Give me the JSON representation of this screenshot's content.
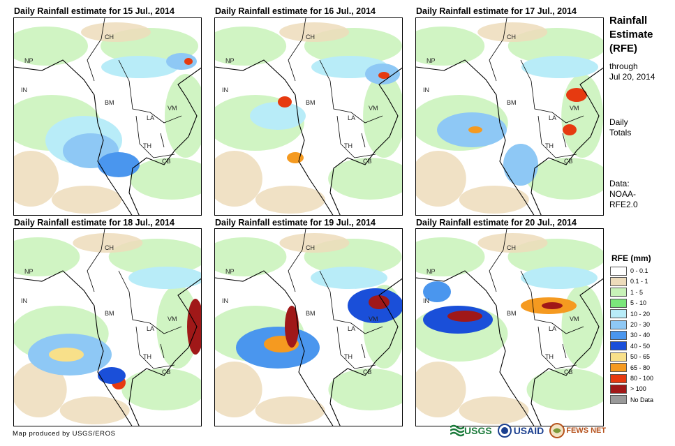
{
  "panels": [
    {
      "title": "Daily Rainfall estimate for 15 Jul., 2014",
      "heavy_rain_level": "low"
    },
    {
      "title": "Daily Rainfall estimate for 16 Jul., 2014",
      "heavy_rain_level": "low"
    },
    {
      "title": "Daily Rainfall estimate for 17 Jul., 2014",
      "heavy_rain_level": "low"
    },
    {
      "title": "Daily Rainfall estimate for 18 Jul., 2014",
      "heavy_rain_level": "medium"
    },
    {
      "title": "Daily Rainfall estimate for 19 Jul., 2014",
      "heavy_rain_level": "high"
    },
    {
      "title": "Daily Rainfall estimate for 20 Jul., 2014",
      "heavy_rain_level": "high"
    }
  ],
  "country_labels": [
    "CH",
    "NP",
    "IN",
    "BM",
    "LA",
    "VM",
    "TH",
    "CB"
  ],
  "side": {
    "title_lines": [
      "Rainfall",
      "Estimate",
      "(RFE)"
    ],
    "through_lines": [
      "through",
      "Jul 20, 2014"
    ],
    "totals_lines": [
      "Daily",
      "Totals"
    ],
    "data_lines": [
      "Data:",
      "NOAA-",
      "RFE2.0"
    ]
  },
  "legend": {
    "title": "RFE (mm)",
    "items": [
      {
        "label": "0 - 0.1",
        "color": "#ffffff"
      },
      {
        "label": "0.1 - 1",
        "color": "#eddcbb"
      },
      {
        "label": "1 - 5",
        "color": "#c8f2b8"
      },
      {
        "label": "5 - 10",
        "color": "#7be67b"
      },
      {
        "label": "10 - 20",
        "color": "#b8ecf8"
      },
      {
        "label": "20 - 30",
        "color": "#8ec8f5"
      },
      {
        "label": "30 - 40",
        "color": "#4a96ee"
      },
      {
        "label": "40 - 50",
        "color": "#1a4fd9"
      },
      {
        "label": "50 - 65",
        "color": "#f8e08a"
      },
      {
        "label": "65 - 80",
        "color": "#f59a20"
      },
      {
        "label": "80 - 100",
        "color": "#e63a10"
      },
      {
        "label": "> 100",
        "color": "#a01818"
      },
      {
        "label": "No Data",
        "color": "#999999"
      }
    ]
  },
  "footer": {
    "credit": "Map produced by USGS/EROS"
  },
  "logos": {
    "usgs": "USGS",
    "usaid": "USAID",
    "fewsnet": "FEWS NET"
  },
  "colors": {
    "border": "#000000",
    "land_outline": "#000000"
  }
}
